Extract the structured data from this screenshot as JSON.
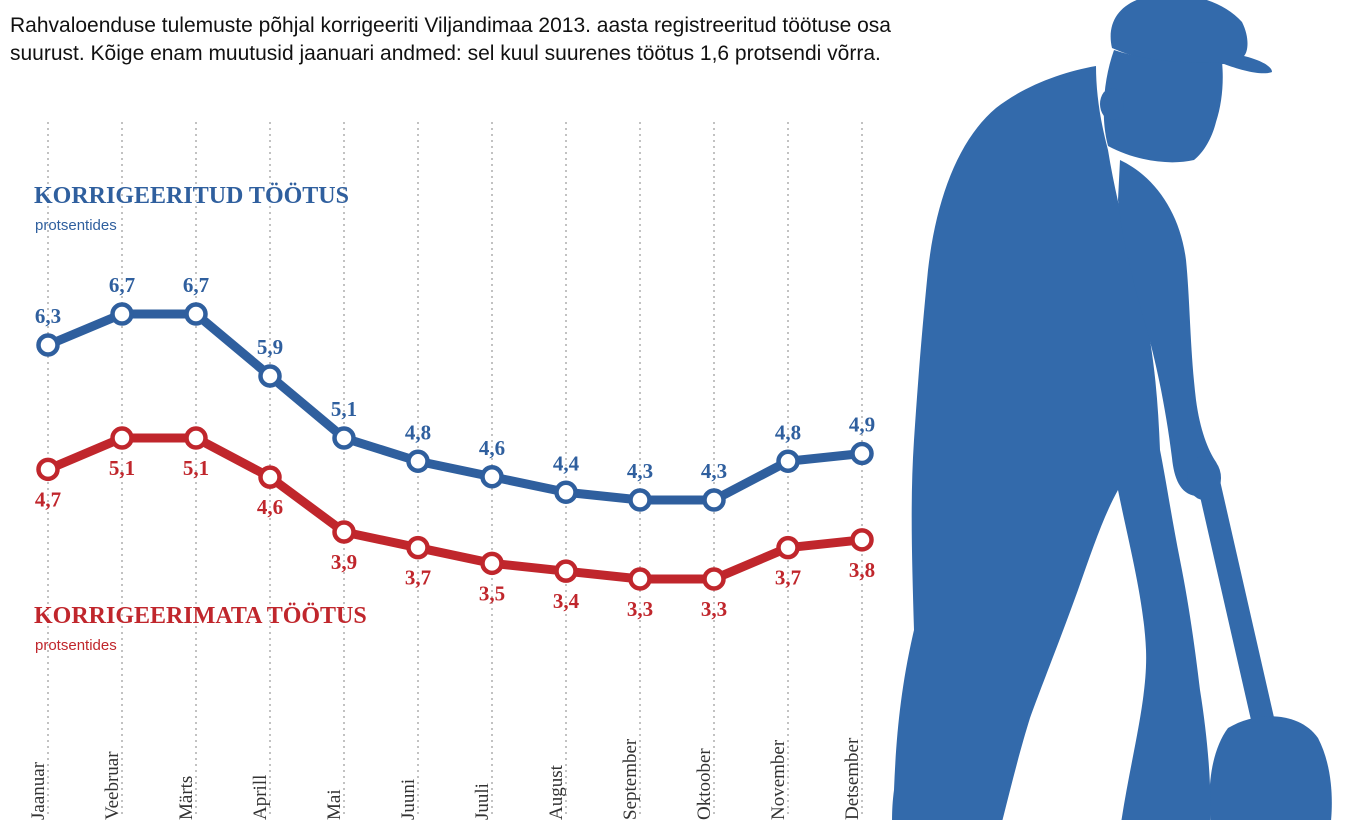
{
  "intro": "Rahvaloenduse tulemuste põhjal korrigeeriti Viljandimaa 2013. aasta registreeritud töötuse osa suurust. Kõige enam muutusid jaanuari andmed: sel kuul suurenes töötus 1,6 protsendi võrra.",
  "colors": {
    "blue": "#2f5f9e",
    "red": "#c0262c",
    "figure": "#336aab"
  },
  "chart_data": {
    "type": "line",
    "categories": [
      "Jaanuar",
      "Veebruar",
      "Märts",
      "Aprill",
      "Mai",
      "Juuni",
      "Juuli",
      "August",
      "September",
      "Oktoober",
      "November",
      "Detsember"
    ],
    "category_labels": [
      "Jaanuar",
      "Veebruar",
      "Märts",
      "Aprill",
      "Mai",
      "Juuni",
      "Juuli",
      "August",
      "September",
      "Oktoober",
      "November",
      "Detsember"
    ],
    "series": [
      {
        "name": "KORRIGEERITUD TÖÖTUS",
        "unit": "protsentides",
        "color": "#2f5f9e",
        "values": [
          6.3,
          6.7,
          6.7,
          5.9,
          5.1,
          4.8,
          4.6,
          4.4,
          4.3,
          4.3,
          4.8,
          4.9
        ],
        "labels": [
          "6,3",
          "6,7",
          "6,7",
          "5,9",
          "5,1",
          "4,8",
          "4,6",
          "4,4",
          "4,3",
          "4,3",
          "4,8",
          "4,9"
        ]
      },
      {
        "name": "KORRIGEERIMATA TÖÖTUS",
        "unit": "protsentides",
        "color": "#c0262c",
        "values": [
          4.7,
          5.1,
          5.1,
          4.6,
          3.9,
          3.7,
          3.5,
          3.4,
          3.3,
          3.3,
          3.7,
          3.8
        ],
        "labels": [
          "4,7",
          "5,1",
          "5,1",
          "4,6",
          "3,9",
          "3,7",
          "3,5",
          "3,4",
          "3,3",
          "3,3",
          "3,7",
          "3,8"
        ]
      }
    ],
    "grid": true,
    "legend": "inline"
  }
}
